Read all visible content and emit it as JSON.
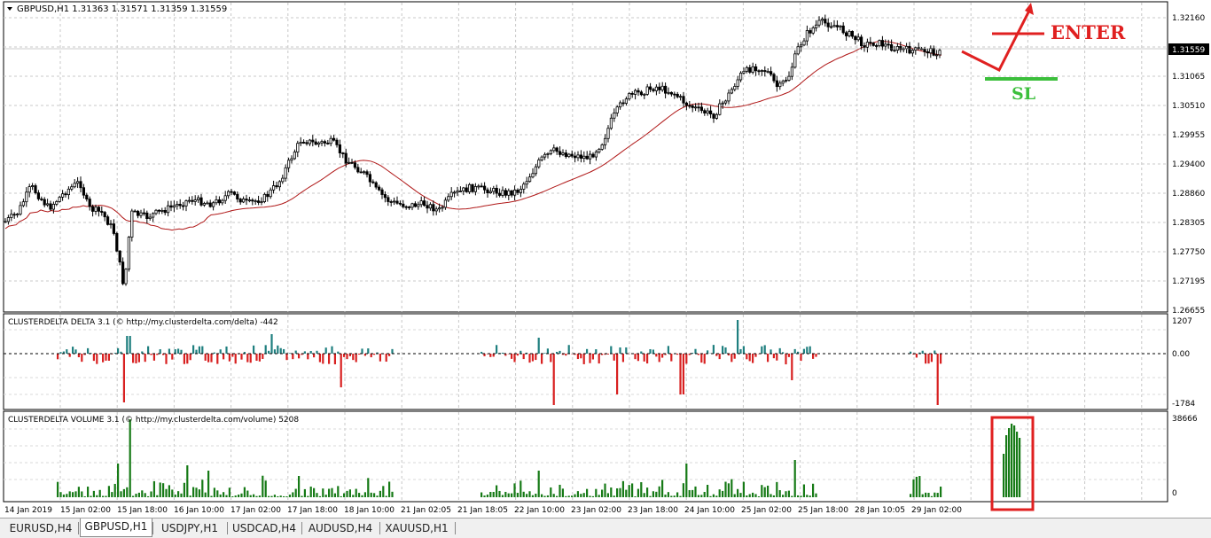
{
  "main_chart": {
    "header": "GBPUSD,H1  1.31363 1.31571 1.31359 1.31559",
    "price_ticks": [
      "1.32160",
      "1.31065",
      "1.30510",
      "1.29955",
      "1.29400",
      "1.28860",
      "1.28305",
      "1.27750",
      "1.27195",
      "1.26655"
    ],
    "current_price": "1.31559",
    "annotations": {
      "enter_label": "ENTER",
      "sl_label": "SL",
      "enter_color": "#e02020",
      "sl_color": "#3cbf3c",
      "highlight_color": "#e02020"
    }
  },
  "delta_panel": {
    "header": "CLUSTERDELTA DELTA 3.1 (© http://my.clusterdelta.com/delta) -442",
    "ticks": [
      "1207",
      "0.00",
      "-1784"
    ]
  },
  "volume_panel": {
    "header": "CLUSTERDELTA VOLUME 3.1 (© http://my.clusterdelta.com/volume) 5208",
    "ticks": [
      "38666",
      "0"
    ]
  },
  "time_axis": [
    "14 Jan 2019",
    "15 Jan 02:00",
    "15 Jan 18:00",
    "16 Jan 10:00",
    "17 Jan 02:00",
    "17 Jan 18:00",
    "18 Jan 10:00",
    "21 Jan 02:05",
    "21 Jan 18:05",
    "22 Jan 10:00",
    "23 Jan 02:00",
    "23 Jan 18:00",
    "24 Jan 10:00",
    "25 Jan 02:00",
    "25 Jan 18:00",
    "28 Jan 10:05",
    "29 Jan 02:00"
  ],
  "tabs": [
    {
      "label": "EURUSD,H4",
      "active": false
    },
    {
      "label": "GBPUSD,H1",
      "active": true
    },
    {
      "label": "USDJPY,H1",
      "active": false
    },
    {
      "label": "USDCAD,H4",
      "active": false
    },
    {
      "label": "AUDUSD,H4",
      "active": false
    },
    {
      "label": "XAUUSD,H1",
      "active": false
    }
  ],
  "colors": {
    "bull_delta": "#1f7f7f",
    "bear_delta": "#d82020",
    "volume": "#167a16",
    "ma": "#b01818",
    "candle": "#000000"
  }
}
